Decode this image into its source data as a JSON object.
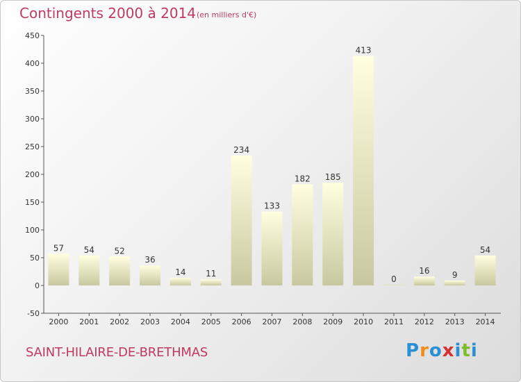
{
  "title": "Contingents 2000 à 2014",
  "subtitle": "(en milliers d'€)",
  "commune": "SAINT-HILAIRE-DE-BRETHMAS",
  "logo": {
    "letters": [
      "P",
      "r",
      "o",
      "x",
      "i",
      "t",
      "i"
    ],
    "colors": [
      "#2b8fd6",
      "#f28c1a",
      "#2b8fd6",
      "#d6312f",
      "#2b8fd6",
      "#7cbd28",
      "#2b8fd6"
    ]
  },
  "chart_data": {
    "type": "bar",
    "categories": [
      "2000",
      "2001",
      "2002",
      "2003",
      "2004",
      "2005",
      "2006",
      "2007",
      "2008",
      "2009",
      "2010",
      "2011",
      "2012",
      "2013",
      "2014"
    ],
    "values": [
      57,
      54,
      52,
      36,
      14,
      11,
      234,
      133,
      182,
      185,
      413,
      0,
      16,
      9,
      54
    ],
    "title": "Contingents 2000 à 2014",
    "subtitle": "(en milliers d'€)",
    "ylim": [
      -50,
      450
    ],
    "yticks": [
      -50,
      0,
      50,
      100,
      150,
      200,
      250,
      300,
      350,
      400,
      450
    ],
    "grid": false,
    "bar_color_top": "#ffffe0",
    "bar_color_bottom": "#c8c8a0"
  }
}
